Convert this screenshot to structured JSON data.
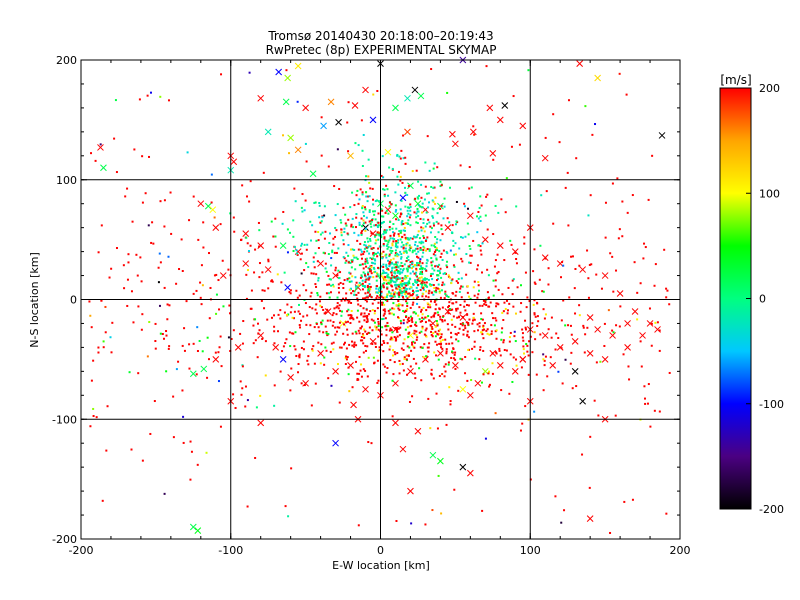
{
  "chart_data": {
    "type": "scatter",
    "title": "Tromsø 20140430 20:18:00–20:19:43",
    "subtitle": "RwPretec (8p) EXPERIMENTAL SKYMAP",
    "xlabel": "E-W location [km]",
    "ylabel": "N-S location [km]",
    "xlim": [
      -200,
      200
    ],
    "ylim": [
      -200,
      200
    ],
    "x_ticks": [
      "-200",
      "-100",
      "0",
      "100",
      "200"
    ],
    "y_ticks": [
      "-200",
      "-100",
      "0",
      "100",
      "200"
    ],
    "grid": true,
    "grid_lines": [
      -100,
      0,
      100
    ],
    "colorbar": {
      "label": "[m/s]",
      "range": [
        -200,
        200
      ],
      "ticks": [
        "200",
        "100",
        "0",
        "-100",
        "-200"
      ],
      "colors": [
        "#000000",
        "#4b0082",
        "#0000ff",
        "#00c8ff",
        "#00ff80",
        "#00ff00",
        "#ffff00",
        "#ffa500",
        "#ff0000"
      ]
    },
    "cross_points": [
      [
        -68,
        190,
        -100
      ],
      [
        -62,
        185,
        80
      ],
      [
        -55,
        195,
        110
      ],
      [
        -80,
        168,
        200
      ],
      [
        -63,
        165,
        20
      ],
      [
        -50,
        160,
        200
      ],
      [
        -33,
        165,
        160
      ],
      [
        -75,
        140,
        -20
      ],
      [
        -60,
        135,
        80
      ],
      [
        -38,
        145,
        -60
      ],
      [
        -17,
        162,
        200
      ],
      [
        -10,
        175,
        200
      ],
      [
        -28,
        148,
        -200
      ],
      [
        -5,
        150,
        -100
      ],
      [
        0,
        197,
        -200
      ],
      [
        23,
        175,
        -200
      ],
      [
        18,
        168,
        -20
      ],
      [
        10,
        160,
        20
      ],
      [
        27,
        170,
        20
      ],
      [
        55,
        200,
        -140
      ],
      [
        62,
        140,
        200
      ],
      [
        83,
        162,
        -200
      ],
      [
        73,
        160,
        200
      ],
      [
        80,
        150,
        200
      ],
      [
        95,
        145,
        200
      ],
      [
        133,
        197,
        200
      ],
      [
        145,
        185,
        120
      ],
      [
        188,
        137,
        -200
      ],
      [
        110,
        118,
        200
      ],
      [
        75,
        122,
        200
      ],
      [
        50,
        130,
        200
      ],
      [
        48,
        138,
        200
      ],
      [
        18,
        140,
        180
      ],
      [
        5,
        123,
        100
      ],
      [
        -20,
        120,
        140
      ],
      [
        -55,
        125,
        160
      ],
      [
        -45,
        105,
        20
      ],
      [
        -100,
        108,
        -20
      ],
      [
        -100,
        120,
        200
      ],
      [
        -98,
        115,
        200
      ],
      [
        -187,
        127,
        200
      ],
      [
        -185,
        110,
        20
      ],
      [
        -120,
        80,
        200
      ],
      [
        -115,
        78,
        20
      ],
      [
        -112,
        75,
        100
      ],
      [
        -110,
        60,
        200
      ],
      [
        -90,
        55,
        200
      ],
      [
        -80,
        45,
        200
      ],
      [
        -65,
        45,
        20
      ],
      [
        -55,
        40,
        200
      ],
      [
        -40,
        30,
        200
      ],
      [
        -30,
        20,
        200
      ],
      [
        -15,
        10,
        200
      ],
      [
        -10,
        60,
        -200
      ],
      [
        -5,
        55,
        200
      ],
      [
        0,
        80,
        20
      ],
      [
        5,
        75,
        200
      ],
      [
        10,
        70,
        40
      ],
      [
        15,
        85,
        -100
      ],
      [
        20,
        95,
        20
      ],
      [
        25,
        80,
        40
      ],
      [
        30,
        75,
        200
      ],
      [
        40,
        78,
        20
      ],
      [
        45,
        60,
        200
      ],
      [
        60,
        70,
        200
      ],
      [
        70,
        50,
        200
      ],
      [
        80,
        45,
        200
      ],
      [
        90,
        40,
        200
      ],
      [
        100,
        60,
        200
      ],
      [
        110,
        35,
        200
      ],
      [
        120,
        30,
        200
      ],
      [
        135,
        25,
        200
      ],
      [
        150,
        20,
        200
      ],
      [
        160,
        5,
        200
      ],
      [
        170,
        -10,
        200
      ],
      [
        180,
        -20,
        200
      ],
      [
        185,
        -25,
        200
      ],
      [
        175,
        -30,
        200
      ],
      [
        165,
        -40,
        200
      ],
      [
        150,
        -50,
        200
      ],
      [
        140,
        -45,
        200
      ],
      [
        130,
        -35,
        200
      ],
      [
        120,
        -40,
        200
      ],
      [
        110,
        -30,
        200
      ],
      [
        100,
        -25,
        200
      ],
      [
        95,
        -50,
        200
      ],
      [
        90,
        -60,
        200
      ],
      [
        80,
        -55,
        200
      ],
      [
        75,
        -45,
        200
      ],
      [
        70,
        -60,
        80
      ],
      [
        65,
        -70,
        200
      ],
      [
        60,
        -80,
        200
      ],
      [
        55,
        -75,
        100
      ],
      [
        50,
        -55,
        200
      ],
      [
        40,
        -45,
        200
      ],
      [
        30,
        -50,
        200
      ],
      [
        20,
        -60,
        200
      ],
      [
        10,
        -70,
        200
      ],
      [
        0,
        -80,
        200
      ],
      [
        -10,
        -75,
        200
      ],
      [
        -20,
        -55,
        200
      ],
      [
        -30,
        -60,
        200
      ],
      [
        -40,
        -45,
        200
      ],
      [
        -50,
        -70,
        200
      ],
      [
        -60,
        -65,
        200
      ],
      [
        -65,
        -50,
        -100
      ],
      [
        -70,
        -40,
        200
      ],
      [
        -80,
        -30,
        200
      ],
      [
        -95,
        -40,
        200
      ],
      [
        -110,
        -50,
        200
      ],
      [
        -118,
        -58,
        20
      ],
      [
        -125,
        -62,
        20
      ],
      [
        -100,
        -85,
        200
      ],
      [
        -80,
        -103,
        200
      ],
      [
        -30,
        -120,
        -100
      ],
      [
        -18,
        -88,
        200
      ],
      [
        -15,
        -100,
        200
      ],
      [
        10,
        -103,
        200
      ],
      [
        25,
        -110,
        200
      ],
      [
        15,
        -125,
        200
      ],
      [
        35,
        -130,
        20
      ],
      [
        40,
        -135,
        40
      ],
      [
        55,
        -140,
        -200
      ],
      [
        60,
        -145,
        200
      ],
      [
        20,
        -160,
        200
      ],
      [
        95,
        -50,
        200
      ],
      [
        100,
        -85,
        200
      ],
      [
        135,
        -85,
        -200
      ],
      [
        130,
        -60,
        -200
      ],
      [
        140,
        -15,
        200
      ],
      [
        145,
        -25,
        200
      ],
      [
        165,
        -20,
        200
      ],
      [
        155,
        -30,
        200
      ],
      [
        115,
        -55,
        200
      ],
      [
        150,
        -100,
        200
      ],
      [
        140,
        -183,
        200
      ],
      [
        -125,
        -190,
        20
      ],
      [
        -122,
        -193,
        40
      ],
      [
        -62,
        10,
        -100
      ],
      [
        -90,
        30,
        200
      ],
      [
        -75,
        25,
        200
      ],
      [
        -105,
        20,
        200
      ],
      [
        -35,
        -10,
        200
      ],
      [
        -25,
        -20,
        100
      ],
      [
        -5,
        -35,
        200
      ],
      [
        10,
        -25,
        200
      ],
      [
        20,
        -30,
        100
      ],
      [
        35,
        -20,
        200
      ],
      [
        45,
        -10,
        200
      ],
      [
        55,
        -15,
        200
      ]
    ]
  }
}
